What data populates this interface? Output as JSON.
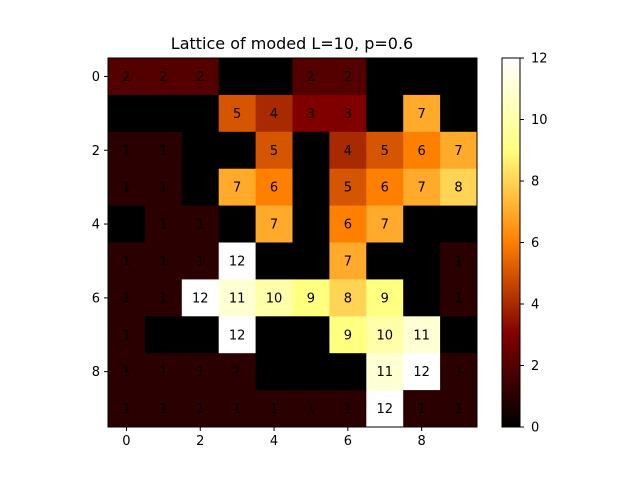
{
  "chart_data": {
    "type": "heatmap",
    "title": "Lattice of moded L=10, p=0.6",
    "xlabel": "",
    "ylabel": "",
    "x_ticks": [
      0,
      2,
      4,
      6,
      8
    ],
    "y_ticks": [
      0,
      2,
      4,
      6,
      8
    ],
    "colormap": "afmhot",
    "vmin": 0,
    "vmax": 12,
    "colorbar_ticks": [
      0,
      2,
      4,
      6,
      8,
      10,
      12
    ],
    "matrix": [
      [
        2,
        2,
        2,
        0,
        0,
        2,
        2,
        0,
        0,
        0
      ],
      [
        0,
        0,
        0,
        5,
        4,
        3,
        3,
        0,
        7,
        0
      ],
      [
        1,
        1,
        0,
        0,
        5,
        0,
        4,
        5,
        6,
        7
      ],
      [
        1,
        1,
        0,
        7,
        6,
        0,
        5,
        6,
        7,
        8
      ],
      [
        0,
        1,
        1,
        0,
        7,
        0,
        6,
        7,
        0,
        0
      ],
      [
        1,
        1,
        1,
        12,
        0,
        0,
        7,
        0,
        0,
        1
      ],
      [
        1,
        1,
        12,
        11,
        10,
        9,
        8,
        9,
        0,
        1
      ],
      [
        1,
        0,
        0,
        12,
        0,
        0,
        9,
        10,
        11,
        0
      ],
      [
        1,
        1,
        1,
        1,
        0,
        0,
        0,
        11,
        12,
        1
      ],
      [
        1,
        1,
        1,
        1,
        1,
        1,
        1,
        12,
        1,
        1
      ]
    ]
  }
}
